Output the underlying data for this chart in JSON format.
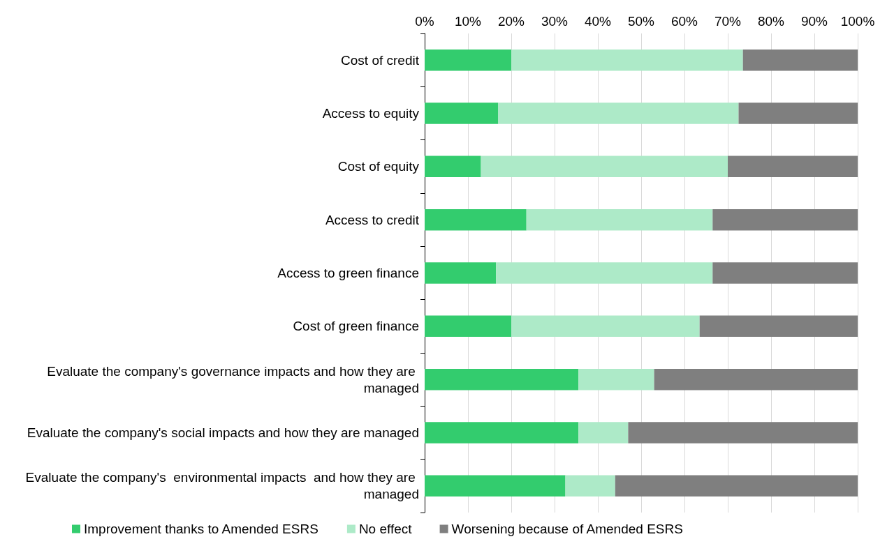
{
  "chart_data": {
    "type": "bar",
    "orientation": "horizontal",
    "stacked": true,
    "categories": [
      "Cost of credit",
      "Access to equity",
      "Cost of equity",
      "Access to credit",
      "Access to green finance",
      "Cost of green finance",
      "Evaluate the company's governance impacts and how they are managed",
      "Evaluate the company's social impacts and how they are managed",
      "Evaluate the company's  environmental impacts  and how they are managed"
    ],
    "series": [
      {
        "name": "Improvement thanks to Amended ESRS",
        "color": "#33cc6e",
        "values": [
          20,
          17,
          13,
          23.5,
          16.5,
          20,
          35.5,
          35.5,
          32.5
        ]
      },
      {
        "name": "No effect",
        "color": "#adeac8",
        "values": [
          53.5,
          55.5,
          57,
          43,
          50,
          43.5,
          17.5,
          11.5,
          11.5
        ]
      },
      {
        "name": "Worsening because of Amended ESRS",
        "color": "#7f7f7f",
        "values": [
          26.5,
          27.5,
          30,
          33.5,
          33.5,
          36.5,
          47,
          53,
          56
        ]
      }
    ],
    "xlim": [
      0,
      100
    ],
    "xticks": [
      {
        "value": 0,
        "label": "0%"
      },
      {
        "value": 10,
        "label": "10%"
      },
      {
        "value": 20,
        "label": "20%"
      },
      {
        "value": 30,
        "label": "30%"
      },
      {
        "value": 40,
        "label": "40%"
      },
      {
        "value": 50,
        "label": "50%"
      },
      {
        "value": 60,
        "label": "60%"
      },
      {
        "value": 70,
        "label": "70%"
      },
      {
        "value": 80,
        "label": "80%"
      },
      {
        "value": 90,
        "label": "90%"
      },
      {
        "value": 100,
        "label": "100%"
      }
    ],
    "grid": "x",
    "legend": "bottom"
  }
}
